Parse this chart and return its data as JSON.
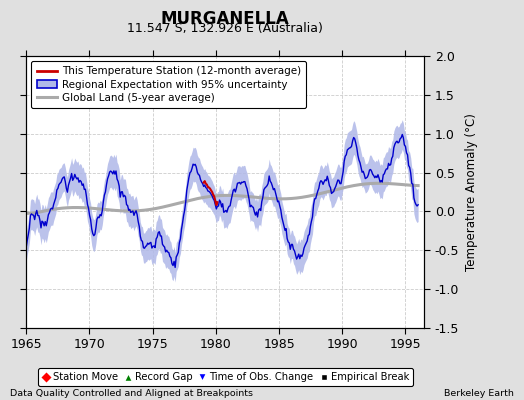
{
  "title": "MURGANELLA",
  "subtitle": "11.547 S, 132.926 E (Australia)",
  "xlabel_bottom": "Data Quality Controlled and Aligned at Breakpoints",
  "xlabel_bottom_right": "Berkeley Earth",
  "ylabel": "Temperature Anomaly (°C)",
  "xlim": [
    1965,
    1996.5
  ],
  "ylim": [
    -1.5,
    2.0
  ],
  "yticks": [
    -1.5,
    -1.0,
    -0.5,
    0.0,
    0.5,
    1.0,
    1.5,
    2.0
  ],
  "xticks": [
    1965,
    1970,
    1975,
    1980,
    1985,
    1990,
    1995
  ],
  "bg_color": "#e0e0e0",
  "plot_bg_color": "#ffffff",
  "regional_color": "#0000cc",
  "regional_fill_color": "#b0b8e8",
  "station_color": "#cc0000",
  "global_color": "#aaaaaa",
  "legend_entries": [
    "This Temperature Station (12-month average)",
    "Regional Expectation with 95% uncertainty",
    "Global Land (5-year average)"
  ],
  "bottom_legend": [
    "Station Move",
    "Record Gap",
    "Time of Obs. Change",
    "Empirical Break"
  ]
}
